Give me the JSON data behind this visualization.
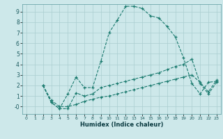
{
  "title": "",
  "xlabel": "Humidex (Indice chaleur)",
  "background_color": "#cde8ea",
  "grid_color": "#aacdd0",
  "line_color": "#1a7a6e",
  "xlim": [
    -0.5,
    23.5
  ],
  "ylim": [
    -0.7,
    9.7
  ],
  "yticks": [
    0,
    1,
    2,
    3,
    4,
    5,
    6,
    7,
    8,
    9
  ],
  "ytick_labels": [
    "-0",
    "1",
    "2",
    "3",
    "4",
    "5",
    "6",
    "7",
    "8",
    "9"
  ],
  "xticks": [
    0,
    1,
    2,
    3,
    4,
    5,
    6,
    7,
    8,
    9,
    10,
    11,
    12,
    13,
    14,
    15,
    16,
    17,
    18,
    19,
    20,
    21,
    22,
    23
  ],
  "series": [
    {
      "x": [
        2,
        3,
        4,
        5,
        6,
        7,
        8,
        9,
        10,
        11,
        12,
        13,
        14,
        15,
        16,
        17,
        18,
        19,
        20,
        21,
        22,
        23
      ],
      "y": [
        2.0,
        0.4,
        -0.2,
        1.2,
        2.8,
        1.8,
        1.8,
        4.3,
        7.0,
        8.2,
        9.5,
        9.5,
        9.3,
        8.6,
        8.4,
        7.6,
        6.6,
        4.6,
        2.2,
        1.2,
        2.3,
        2.4
      ]
    },
    {
      "x": [
        2,
        3,
        4,
        5,
        6,
        7,
        8,
        9,
        10,
        11,
        12,
        13,
        14,
        15,
        16,
        17,
        18,
        19,
        20,
        21,
        22,
        23
      ],
      "y": [
        2.0,
        0.4,
        -0.2,
        -0.2,
        1.3,
        1.0,
        1.2,
        1.8,
        2.0,
        2.2,
        2.4,
        2.6,
        2.8,
        3.0,
        3.2,
        3.5,
        3.8,
        4.0,
        4.5,
        2.2,
        1.2,
        2.3
      ]
    },
    {
      "x": [
        2,
        3,
        4,
        5,
        6,
        7,
        8,
        9,
        10,
        11,
        12,
        13,
        14,
        15,
        16,
        17,
        18,
        19,
        20,
        21,
        22,
        23
      ],
      "y": [
        2.0,
        0.6,
        0.0,
        0.0,
        0.2,
        0.5,
        0.7,
        0.9,
        1.0,
        1.2,
        1.4,
        1.6,
        1.8,
        2.0,
        2.2,
        2.4,
        2.6,
        2.8,
        3.0,
        2.3,
        1.4,
        2.5
      ]
    }
  ]
}
